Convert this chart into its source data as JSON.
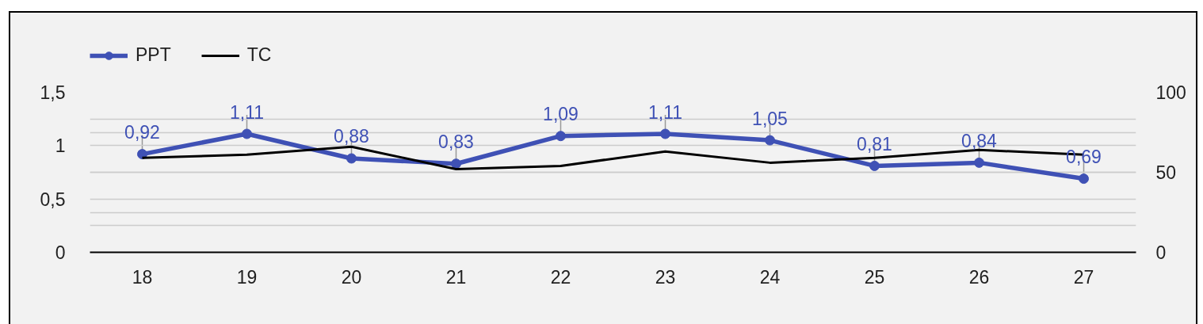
{
  "chart_data": {
    "type": "line",
    "categories": [
      "18",
      "19",
      "20",
      "21",
      "22",
      "23",
      "24",
      "25",
      "26",
      "27"
    ],
    "series": [
      {
        "name": "PPT",
        "color": "#3f51b5",
        "marker": "circle",
        "values": [
          0.92,
          1.11,
          0.88,
          0.83,
          1.09,
          1.11,
          1.05,
          0.81,
          0.84,
          0.69
        ],
        "value_labels": [
          "0,92",
          "1,11",
          "0,88",
          "0,83",
          "1,09",
          "1,11",
          "1,05",
          "0,81",
          "0,84",
          "0,69"
        ]
      },
      {
        "name": "TC",
        "color": "#000000",
        "marker": "none",
        "axis": "y2",
        "values": [
          59,
          61,
          66,
          52,
          54,
          63,
          56,
          59,
          64,
          61
        ]
      }
    ],
    "ylim": [
      0,
      1.5
    ],
    "yticks": [
      0,
      {
        "value": 0.25,
        "label": null
      },
      {
        "value": 0.5,
        "label": "0,5"
      },
      {
        "value": 0.75,
        "label": null
      },
      1,
      {
        "value": 1.25,
        "label": null
      },
      {
        "value": 1.5,
        "label": "1,5"
      }
    ],
    "y2lim": [
      0,
      100
    ],
    "y2ticks": [
      0,
      {
        "value": 25,
        "label": null
      },
      50,
      {
        "value": 75,
        "label": null
      },
      100
    ],
    "grid": "y",
    "legend": "top left"
  }
}
